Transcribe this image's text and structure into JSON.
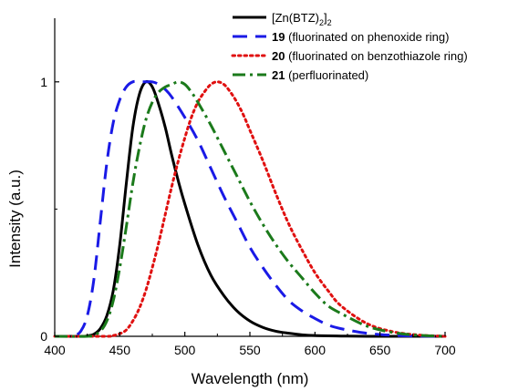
{
  "chart_data": {
    "type": "line",
    "xlabel": "Wavelength (nm)",
    "ylabel": "Intensity (a.u.)",
    "xlim": [
      400,
      700
    ],
    "ylim": [
      0,
      1.25
    ],
    "x_ticks": [
      400,
      450,
      500,
      550,
      600,
      650,
      700
    ],
    "y_ticks": [
      0,
      1
    ],
    "grid": false,
    "legend_position": "top-right",
    "series": [
      {
        "name": "[Zn(BTZ)2]2",
        "legend_parts": [
          {
            "text": "[Zn(BTZ)",
            "role": "normal"
          },
          {
            "text": "2",
            "role": "sub"
          },
          {
            "text": "]",
            "role": "normal"
          },
          {
            "text": "2",
            "role": "sub"
          }
        ],
        "color": "#000000",
        "style": "solid",
        "x": [
          400,
          420,
          425,
          430,
          435,
          440,
          445,
          450,
          455,
          460,
          465,
          470,
          475,
          480,
          485,
          490,
          495,
          500,
          510,
          520,
          530,
          540,
          550,
          560,
          570,
          580,
          590,
          600,
          620,
          640,
          660,
          680,
          700
        ],
        "y": [
          0,
          0,
          0.002,
          0.008,
          0.03,
          0.08,
          0.18,
          0.36,
          0.6,
          0.82,
          0.95,
          1.0,
          0.98,
          0.91,
          0.82,
          0.71,
          0.61,
          0.52,
          0.36,
          0.24,
          0.16,
          0.1,
          0.06,
          0.035,
          0.02,
          0.012,
          0.006,
          0.003,
          0.001,
          0,
          0,
          0,
          0
        ]
      },
      {
        "name": "19 (fluorinated on phenoxide ring)",
        "legend_parts": [
          {
            "text": "19",
            "role": "bold"
          },
          {
            "text": " (fluorinated on phenoxide ring)",
            "role": "normal"
          }
        ],
        "color": "#1a1ae6",
        "style": "dashed",
        "x": [
          400,
          410,
          415,
          420,
          425,
          430,
          435,
          440,
          445,
          450,
          455,
          460,
          465,
          470,
          475,
          480,
          485,
          490,
          500,
          510,
          520,
          530,
          540,
          550,
          560,
          570,
          580,
          590,
          600,
          610,
          620,
          640,
          660,
          680,
          700
        ],
        "y": [
          0,
          0,
          0.002,
          0.02,
          0.08,
          0.22,
          0.45,
          0.68,
          0.84,
          0.93,
          0.98,
          1.0,
          1.0,
          1.0,
          1.0,
          0.99,
          0.97,
          0.94,
          0.86,
          0.77,
          0.66,
          0.55,
          0.45,
          0.35,
          0.27,
          0.2,
          0.14,
          0.1,
          0.07,
          0.045,
          0.03,
          0.012,
          0.004,
          0.001,
          0
        ]
      },
      {
        "name": "20 (fluorinated on benzothiazole ring)",
        "legend_parts": [
          {
            "text": "20",
            "role": "bold"
          },
          {
            "text": " (fluorinated on benzothiazole ring)",
            "role": "normal"
          }
        ],
        "color": "#e01010",
        "style": "dotted",
        "x": [
          400,
          440,
          445,
          450,
          455,
          460,
          465,
          470,
          475,
          480,
          485,
          490,
          495,
          500,
          505,
          510,
          515,
          520,
          525,
          530,
          535,
          540,
          545,
          550,
          560,
          570,
          580,
          590,
          600,
          610,
          620,
          640,
          660,
          680,
          700
        ],
        "y": [
          0,
          0,
          0.003,
          0.01,
          0.025,
          0.06,
          0.11,
          0.18,
          0.27,
          0.37,
          0.48,
          0.59,
          0.69,
          0.78,
          0.86,
          0.92,
          0.96,
          0.99,
          1.0,
          0.99,
          0.96,
          0.92,
          0.87,
          0.81,
          0.69,
          0.56,
          0.44,
          0.34,
          0.25,
          0.18,
          0.12,
          0.05,
          0.018,
          0.005,
          0
        ]
      },
      {
        "name": "21 (perfluorinated)",
        "legend_parts": [
          {
            "text": "21",
            "role": "bold"
          },
          {
            "text": " (perfluorinated)",
            "role": "normal"
          }
        ],
        "color": "#1b7a1b",
        "style": "dashdot",
        "x": [
          400,
          425,
          430,
          435,
          440,
          445,
          450,
          455,
          460,
          465,
          470,
          475,
          480,
          485,
          490,
          495,
          500,
          505,
          510,
          520,
          530,
          540,
          550,
          560,
          570,
          580,
          590,
          600,
          610,
          620,
          640,
          660,
          680,
          700
        ],
        "y": [
          0,
          0,
          0.005,
          0.02,
          0.06,
          0.14,
          0.27,
          0.43,
          0.6,
          0.74,
          0.85,
          0.92,
          0.96,
          0.98,
          0.99,
          1.0,
          0.99,
          0.96,
          0.92,
          0.83,
          0.73,
          0.63,
          0.53,
          0.44,
          0.36,
          0.29,
          0.23,
          0.17,
          0.12,
          0.09,
          0.04,
          0.015,
          0.004,
          0
        ]
      }
    ]
  }
}
